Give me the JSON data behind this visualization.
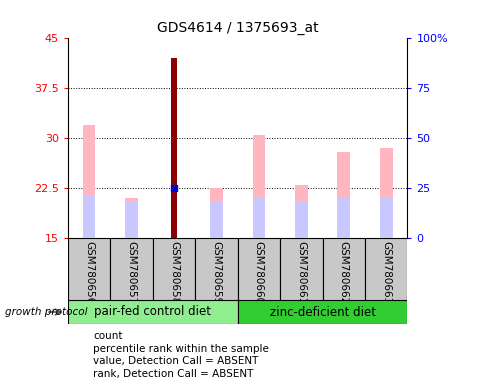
{
  "title": "GDS4614 / 1375693_at",
  "samples": [
    "GSM780656",
    "GSM780657",
    "GSM780658",
    "GSM780659",
    "GSM780660",
    "GSM780661",
    "GSM780662",
    "GSM780663"
  ],
  "count_values": [
    null,
    null,
    42,
    null,
    null,
    null,
    null,
    null
  ],
  "percentile_rank": [
    null,
    null,
    22.5,
    null,
    null,
    null,
    null,
    null
  ],
  "value_absent": [
    32,
    21,
    null,
    22.5,
    30.5,
    23.0,
    28,
    28.5
  ],
  "rank_absent": [
    21.5,
    20.5,
    null,
    20.5,
    21.0,
    20.5,
    21.0,
    21.0
  ],
  "ylim_left": [
    15,
    45
  ],
  "ylim_right": [
    0,
    100
  ],
  "yticks_left": [
    15,
    22.5,
    30,
    37.5,
    45
  ],
  "yticks_right": [
    0,
    25,
    50,
    75,
    100
  ],
  "ytick_labels_left": [
    "15",
    "22.5",
    "30",
    "37.5",
    "45"
  ],
  "ytick_labels_right": [
    "0",
    "25",
    "50",
    "75",
    "100%"
  ],
  "group1_label": "pair-fed control diet",
  "group2_label": "zinc-deficient diet",
  "group1_indices": [
    0,
    1,
    2,
    3
  ],
  "group2_indices": [
    4,
    5,
    6,
    7
  ],
  "group1_color": "#90EE90",
  "group2_color": "#32CD32",
  "sample_bg_color": "#C8C8C8",
  "count_color": "#8B0000",
  "percentile_color": "#0000CC",
  "value_absent_color": "#FFB6C1",
  "rank_absent_color": "#C8C8FF",
  "bar_width": 0.3,
  "bar_base": 15,
  "grid_lines": [
    22.5,
    30,
    37.5
  ],
  "legend_items": [
    [
      "#8B0000",
      "count"
    ],
    [
      "#0000CC",
      "percentile rank within the sample"
    ],
    [
      "#FFB6C1",
      "value, Detection Call = ABSENT"
    ],
    [
      "#C8C8FF",
      "rank, Detection Call = ABSENT"
    ]
  ]
}
